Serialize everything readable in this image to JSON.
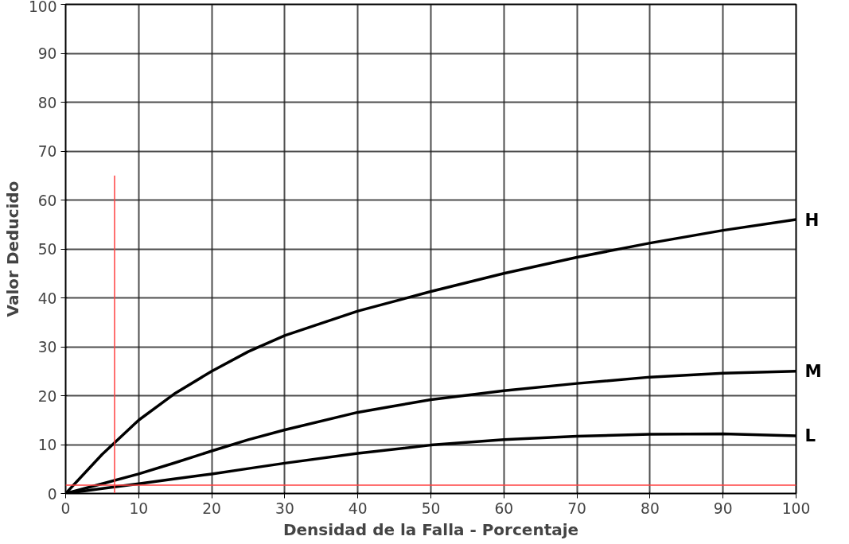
{
  "chart_data": {
    "type": "line",
    "xlabel": "Densidad de la Falla - Porcentaje",
    "ylabel": "Valor Deducido",
    "xlim": [
      0,
      100
    ],
    "ylim": [
      0,
      100
    ],
    "xticks": [
      0,
      10,
      20,
      30,
      40,
      50,
      60,
      70,
      80,
      90,
      100
    ],
    "yticks": [
      0,
      10,
      20,
      30,
      40,
      50,
      60,
      70,
      80,
      90,
      100
    ],
    "grid": true,
    "marker": "none",
    "line_style": "solid",
    "x": [
      0,
      5,
      10,
      15,
      20,
      25,
      30,
      40,
      50,
      60,
      70,
      80,
      90,
      100
    ],
    "series": [
      {
        "name": "H",
        "color": "#000000",
        "values": [
          0,
          8,
          15,
          20.5,
          25,
          29,
          32.3,
          37.3,
          41.3,
          45,
          48.3,
          51.2,
          53.8,
          56
        ]
      },
      {
        "name": "M",
        "color": "#000000",
        "values": [
          0,
          2,
          4,
          6.3,
          8.7,
          11,
          13,
          16.6,
          19.2,
          21,
          22.5,
          23.8,
          24.6,
          25
        ]
      },
      {
        "name": "L",
        "color": "#000000",
        "values": [
          0,
          1,
          2,
          3,
          4,
          5.1,
          6.2,
          8.2,
          9.9,
          11,
          11.7,
          12.1,
          12.2,
          11.8
        ]
      },
      {
        "color": "#ff4040",
        "x": [
          6.7,
          6.7
        ],
        "values": [
          0,
          65
        ]
      }
    ],
    "ref_lines": [
      {
        "axis": "y",
        "value": 1.7,
        "color": "#ff4040",
        "line_style": "solid"
      }
    ]
  }
}
